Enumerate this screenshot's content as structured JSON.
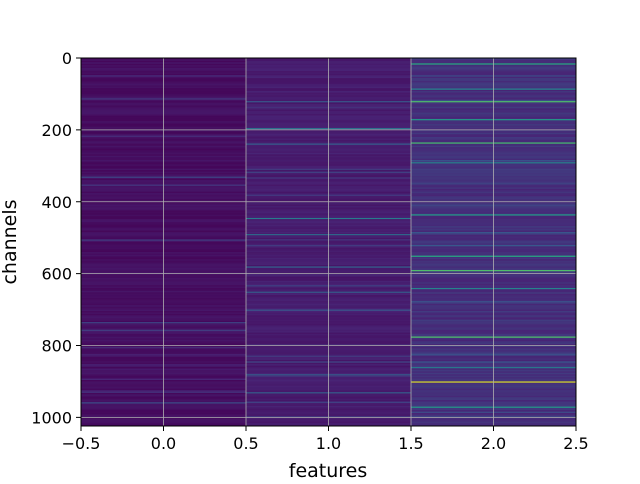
{
  "chart_data": {
    "type": "heatmap",
    "title": "",
    "xlabel": "features",
    "ylabel": "channels",
    "xlim": [
      -0.5,
      2.5
    ],
    "ylim": [
      1024,
      0
    ],
    "y_inverted": true,
    "grid": true,
    "colormap": "viridis",
    "n_columns": 3,
    "n_rows": 1024,
    "x_ticks": [
      "−0.5",
      "0.0",
      "0.5",
      "1.0",
      "1.5",
      "2.0",
      "2.5"
    ],
    "x_tick_values": [
      -0.5,
      0.0,
      0.5,
      1.0,
      1.5,
      2.0,
      2.5
    ],
    "y_ticks": [
      "0",
      "200",
      "400",
      "600",
      "800",
      "1000"
    ],
    "y_tick_values": [
      0,
      200,
      400,
      600,
      800,
      1000
    ],
    "columns": [
      {
        "x": 0,
        "base_level": 0.05,
        "bright_rows": [
          {
            "row": 330,
            "value": 0.22
          },
          {
            "row": 505,
            "value": 0.2
          },
          {
            "row": 735,
            "value": 0.22
          },
          {
            "row": 958,
            "value": 0.24
          }
        ]
      },
      {
        "x": 1,
        "base_level": 0.1,
        "bright_rows": [
          {
            "row": 120,
            "value": 0.28
          },
          {
            "row": 195,
            "value": 0.4
          },
          {
            "row": 238,
            "value": 0.3
          },
          {
            "row": 445,
            "value": 0.42
          },
          {
            "row": 490,
            "value": 0.36
          },
          {
            "row": 580,
            "value": 0.32
          },
          {
            "row": 650,
            "value": 0.3
          },
          {
            "row": 700,
            "value": 0.28
          },
          {
            "row": 880,
            "value": 0.3
          },
          {
            "row": 930,
            "value": 0.3
          }
        ]
      },
      {
        "x": 2,
        "base_level": 0.16,
        "bright_rows": [
          {
            "row": 15,
            "value": 0.62
          },
          {
            "row": 85,
            "value": 0.45
          },
          {
            "row": 120,
            "value": 0.72
          },
          {
            "row": 170,
            "value": 0.55
          },
          {
            "row": 235,
            "value": 0.7
          },
          {
            "row": 290,
            "value": 0.45
          },
          {
            "row": 435,
            "value": 0.55
          },
          {
            "row": 550,
            "value": 0.62
          },
          {
            "row": 590,
            "value": 0.72
          },
          {
            "row": 640,
            "value": 0.45
          },
          {
            "row": 775,
            "value": 0.72
          },
          {
            "row": 860,
            "value": 0.42
          },
          {
            "row": 900,
            "value": 0.95
          },
          {
            "row": 970,
            "value": 0.55
          }
        ]
      }
    ]
  }
}
